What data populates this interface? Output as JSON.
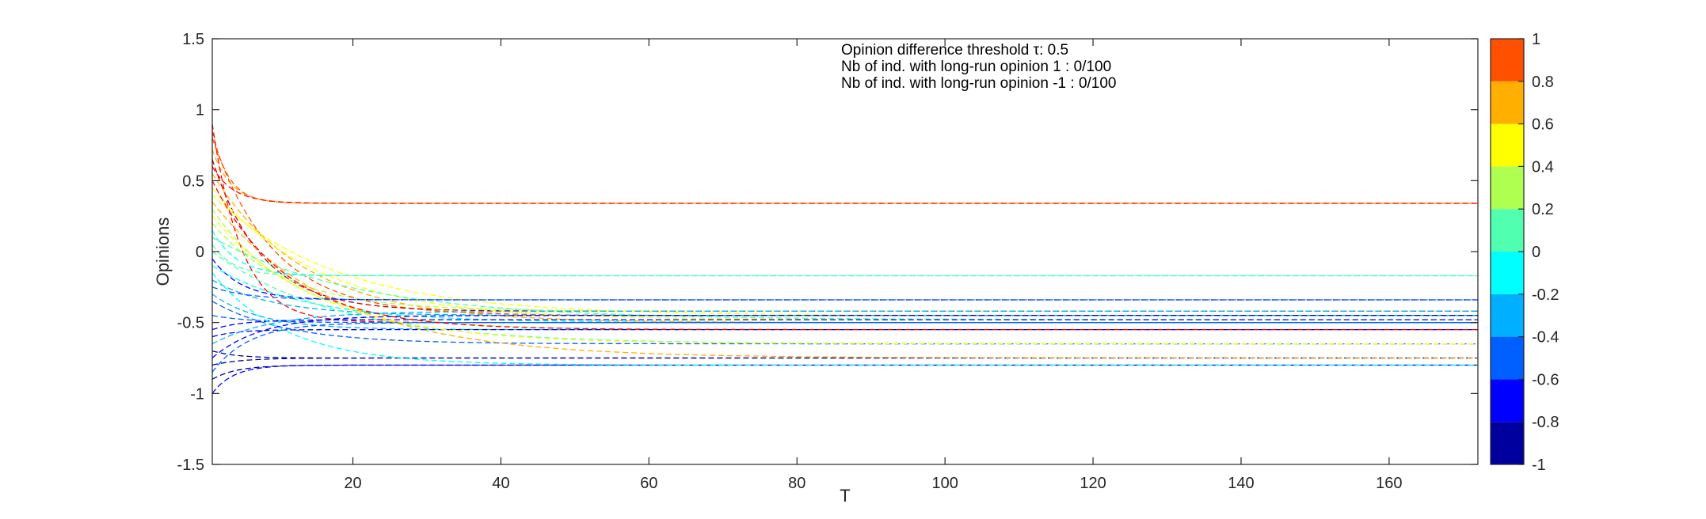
{
  "chart_data": {
    "type": "line",
    "title": "",
    "xlabel": "T",
    "ylabel": "Opinions",
    "xlim": [
      1,
      172
    ],
    "ylim": [
      -1.5,
      1.5
    ],
    "x_ticks": [
      "20",
      "40",
      "60",
      "80",
      "100",
      "120",
      "140",
      "160"
    ],
    "y_ticks": [
      "1.5",
      "1",
      "0.5",
      "0",
      "-0.5",
      "-1",
      "-1.5"
    ],
    "grid": false,
    "line_style": "dashed",
    "annotations": [
      "Opinion difference threshold τ: 0.5",
      "Nb of ind. with long-run opinion 1 : 0/100",
      "Nb of ind. with long-run opinion -1 : 0/100"
    ],
    "long_run_levels": [
      0.34,
      -0.17,
      -0.34,
      -0.42,
      -0.45,
      -0.48,
      -0.5,
      -0.55,
      -0.65,
      -0.75,
      -0.8
    ],
    "colorbar": {
      "ticks": [
        "1",
        "0.8",
        "0.6",
        "0.4",
        "0.2",
        "0",
        "-0.2",
        "-0.4",
        "-0.6",
        "-0.8",
        "-1"
      ],
      "range": [
        -1,
        1
      ],
      "colors": [
        "#00009f",
        "#0000ff",
        "#005fff",
        "#00afff",
        "#00ffff",
        "#50ffaf",
        "#afff50",
        "#ffff00",
        "#ffaf00",
        "#ff5000"
      ]
    },
    "series": [
      {
        "initial": 0.85,
        "final": 0.34,
        "rate": 0.45,
        "color": "#ff5000"
      },
      {
        "initial": 0.72,
        "final": 0.34,
        "rate": 0.4,
        "color": "#ffaf00"
      },
      {
        "initial": 0.6,
        "final": 0.34,
        "rate": 0.35,
        "color": "#ff0000"
      },
      {
        "initial": 0.9,
        "final": -0.5,
        "rate": 0.25,
        "color": "#ff0000"
      },
      {
        "initial": 0.8,
        "final": -0.45,
        "rate": 0.12,
        "color": "#ff5000"
      },
      {
        "initial": 0.65,
        "final": -0.42,
        "rate": 0.15,
        "color": "#c00000"
      },
      {
        "initial": 0.55,
        "final": -0.5,
        "rate": 0.08,
        "color": "#ffaf00"
      },
      {
        "initial": 0.45,
        "final": -0.48,
        "rate": 0.07,
        "color": "#ffff00"
      },
      {
        "initial": 0.4,
        "final": -0.45,
        "rate": 0.06,
        "color": "#ffff00"
      },
      {
        "initial": 0.3,
        "final": -0.55,
        "rate": 0.09,
        "color": "#afff50"
      },
      {
        "initial": 0.2,
        "final": -0.42,
        "rate": 0.1,
        "color": "#afff50"
      },
      {
        "initial": 0.15,
        "final": -0.17,
        "rate": 0.3,
        "color": "#00ffff"
      },
      {
        "initial": 0.05,
        "final": -0.17,
        "rate": 0.35,
        "color": "#50ffaf"
      },
      {
        "initial": -0.05,
        "final": -0.34,
        "rate": 0.25,
        "color": "#0000ff"
      },
      {
        "initial": 0.1,
        "final": -0.48,
        "rate": 0.05,
        "color": "#50ffaf"
      },
      {
        "initial": -0.1,
        "final": -0.5,
        "rate": 0.08,
        "color": "#00ffff"
      },
      {
        "initial": -0.2,
        "final": -0.45,
        "rate": 0.12,
        "color": "#00afff"
      },
      {
        "initial": -0.3,
        "final": -0.55,
        "rate": 0.15,
        "color": "#00afff"
      },
      {
        "initial": -0.35,
        "final": -0.65,
        "rate": 0.1,
        "color": "#005fff"
      },
      {
        "initial": 0.0,
        "final": -0.65,
        "rate": 0.06,
        "color": "#50ffaf"
      },
      {
        "initial": -0.45,
        "final": -0.5,
        "rate": 0.2,
        "color": "#005fff"
      },
      {
        "initial": -0.55,
        "final": -0.48,
        "rate": 0.25,
        "color": "#0000ff"
      },
      {
        "initial": -0.6,
        "final": -0.55,
        "rate": 0.3,
        "color": "#0000ff"
      },
      {
        "initial": -0.7,
        "final": -0.75,
        "rate": 0.3,
        "color": "#00009f"
      },
      {
        "initial": -0.8,
        "final": -0.75,
        "rate": 0.25,
        "color": "#00009f"
      },
      {
        "initial": -0.9,
        "final": -0.8,
        "rate": 0.3,
        "color": "#00009f"
      },
      {
        "initial": -1.0,
        "final": -0.8,
        "rate": 0.35,
        "color": "#0000ff"
      },
      {
        "initial": -0.85,
        "final": -0.5,
        "rate": 0.2,
        "color": "#005fff"
      },
      {
        "initial": -0.75,
        "final": -0.45,
        "rate": 0.15,
        "color": "#0000ff"
      },
      {
        "initial": -0.65,
        "final": -0.42,
        "rate": 0.12,
        "color": "#00afff"
      },
      {
        "initial": 0.35,
        "final": -0.75,
        "rate": 0.06,
        "color": "#ffaf00"
      },
      {
        "initial": 0.25,
        "final": -0.65,
        "rate": 0.07,
        "color": "#ffff00"
      },
      {
        "initial": -0.25,
        "final": -0.34,
        "rate": 0.2,
        "color": "#005fff"
      },
      {
        "initial": -0.15,
        "final": -0.8,
        "rate": 0.1,
        "color": "#00ffff"
      },
      {
        "initial": 0.5,
        "final": -0.55,
        "rate": 0.1,
        "color": "#ff0000"
      }
    ]
  }
}
